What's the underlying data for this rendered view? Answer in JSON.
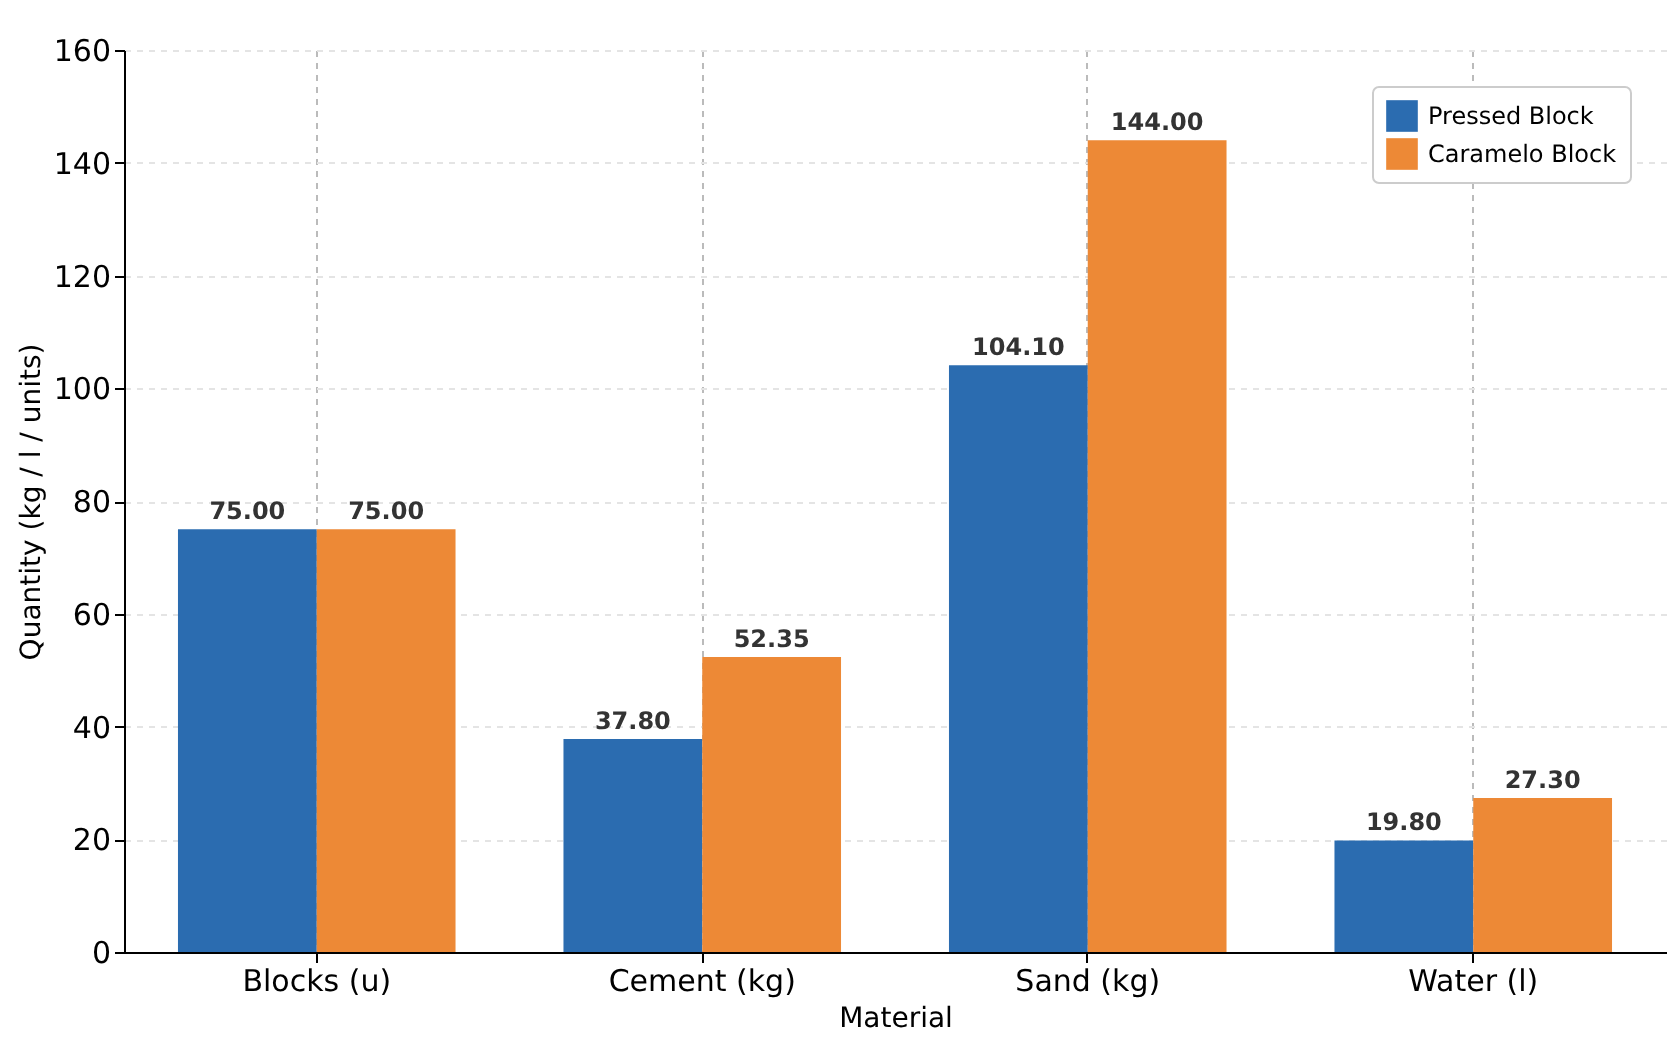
{
  "chart_data": {
    "type": "bar",
    "xlabel": "Material",
    "ylabel": "Quantity (kg / l / units)",
    "categories": [
      "Blocks (u)",
      "Cement (kg)",
      "Sand (kg)",
      "Water (l)"
    ],
    "series": [
      {
        "name": "Pressed Block",
        "color": "#2b6cb0",
        "values": [
          75.0,
          37.8,
          104.1,
          19.8
        ],
        "value_labels": [
          "75.00",
          "37.80",
          "104.10",
          "19.80"
        ]
      },
      {
        "name": "Caramelo Block",
        "color": "#ed8936",
        "values": [
          75.0,
          52.35,
          144.0,
          27.3
        ],
        "value_labels": [
          "75.00",
          "52.35",
          "144.00",
          "27.30"
        ]
      }
    ],
    "ylim": [
      0,
      160
    ],
    "yticks": [
      0,
      20,
      40,
      60,
      80,
      100,
      120,
      140,
      160
    ],
    "grid": true,
    "legend": "top right"
  }
}
